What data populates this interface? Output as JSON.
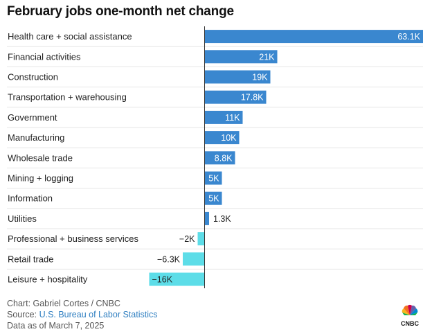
{
  "title": "February jobs one-month net change",
  "chart_data": {
    "type": "bar",
    "orientation": "horizontal",
    "title": "February jobs one-month net change",
    "categories": [
      "Health care + social assistance",
      "Financial activities",
      "Construction",
      "Transportation + warehousing",
      "Government",
      "Manufacturing",
      "Wholesale trade",
      "Mining + logging",
      "Information",
      "Utilities",
      "Professional + business services",
      "Retail trade",
      "Leisure + hospitality"
    ],
    "values": [
      63.1,
      21,
      19,
      17.8,
      11,
      10,
      8.8,
      5,
      5,
      1.3,
      -2,
      -6.3,
      -16
    ],
    "value_labels": [
      "63.1K",
      "21K",
      "19K",
      "17.8K",
      "11K",
      "10K",
      "8.8K",
      "5K",
      "5K",
      "1.3K",
      "−2K",
      "−6.3K",
      "−16K"
    ],
    "unit": "thousands of jobs",
    "xlim": [
      -17.5,
      63.1
    ],
    "colors": {
      "positive": "#3a87cf",
      "negative": "#5ddde8"
    }
  },
  "footer": {
    "credit": "Chart: Gabriel Cortes / CNBC",
    "source_prefix": "Source: ",
    "source_link": "U.S. Bureau of Labor Statistics",
    "date_note": "Data as of March 7, 2025"
  },
  "logo": {
    "icon": "nbc-peacock-icon",
    "text": "CNBC"
  }
}
